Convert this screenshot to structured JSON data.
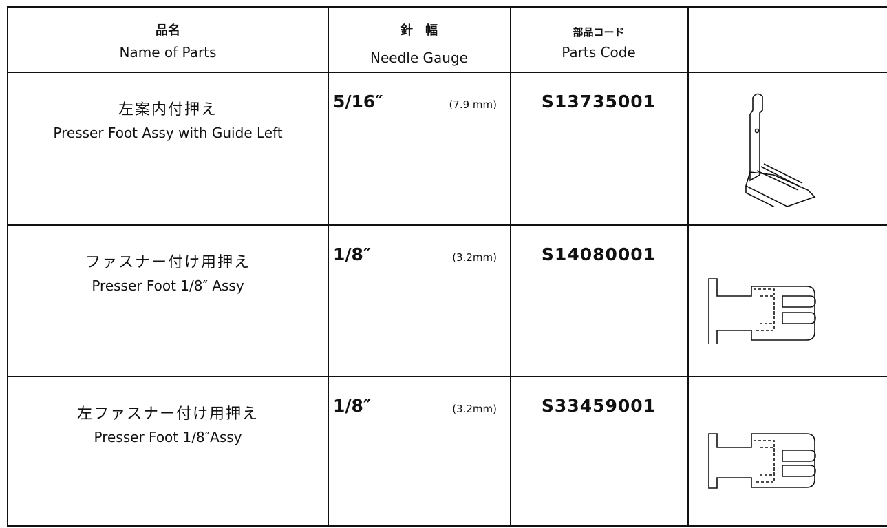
{
  "table": {
    "header": [
      {
        "jp": "品名",
        "en": "Name of Parts"
      },
      {
        "jp": "針　幅",
        "en": "Needle Gauge"
      },
      {
        "jp": "部品コード",
        "en": "Parts Code"
      }
    ],
    "rows": [
      {
        "name_jp": "左案内付押え",
        "name_en": "Presser Foot Assy with Guide Left",
        "gauge": "5/16″",
        "gauge_mm": "(7.9 mm)",
        "code": "S13735001"
      },
      {
        "name_jp": "ファスナー付け用押え",
        "name_en": "Presser Foot 1/8″ Assy",
        "gauge": "1/8″",
        "gauge_mm": "(3.2mm)",
        "code": "S14080001"
      },
      {
        "name_jp": "左ファスナー付け用押え",
        "name_en": "Presser Foot 1/8″Assy",
        "gauge": "1/8″",
        "gauge_mm": "(3.2mm)",
        "code": "S33459001"
      }
    ]
  }
}
